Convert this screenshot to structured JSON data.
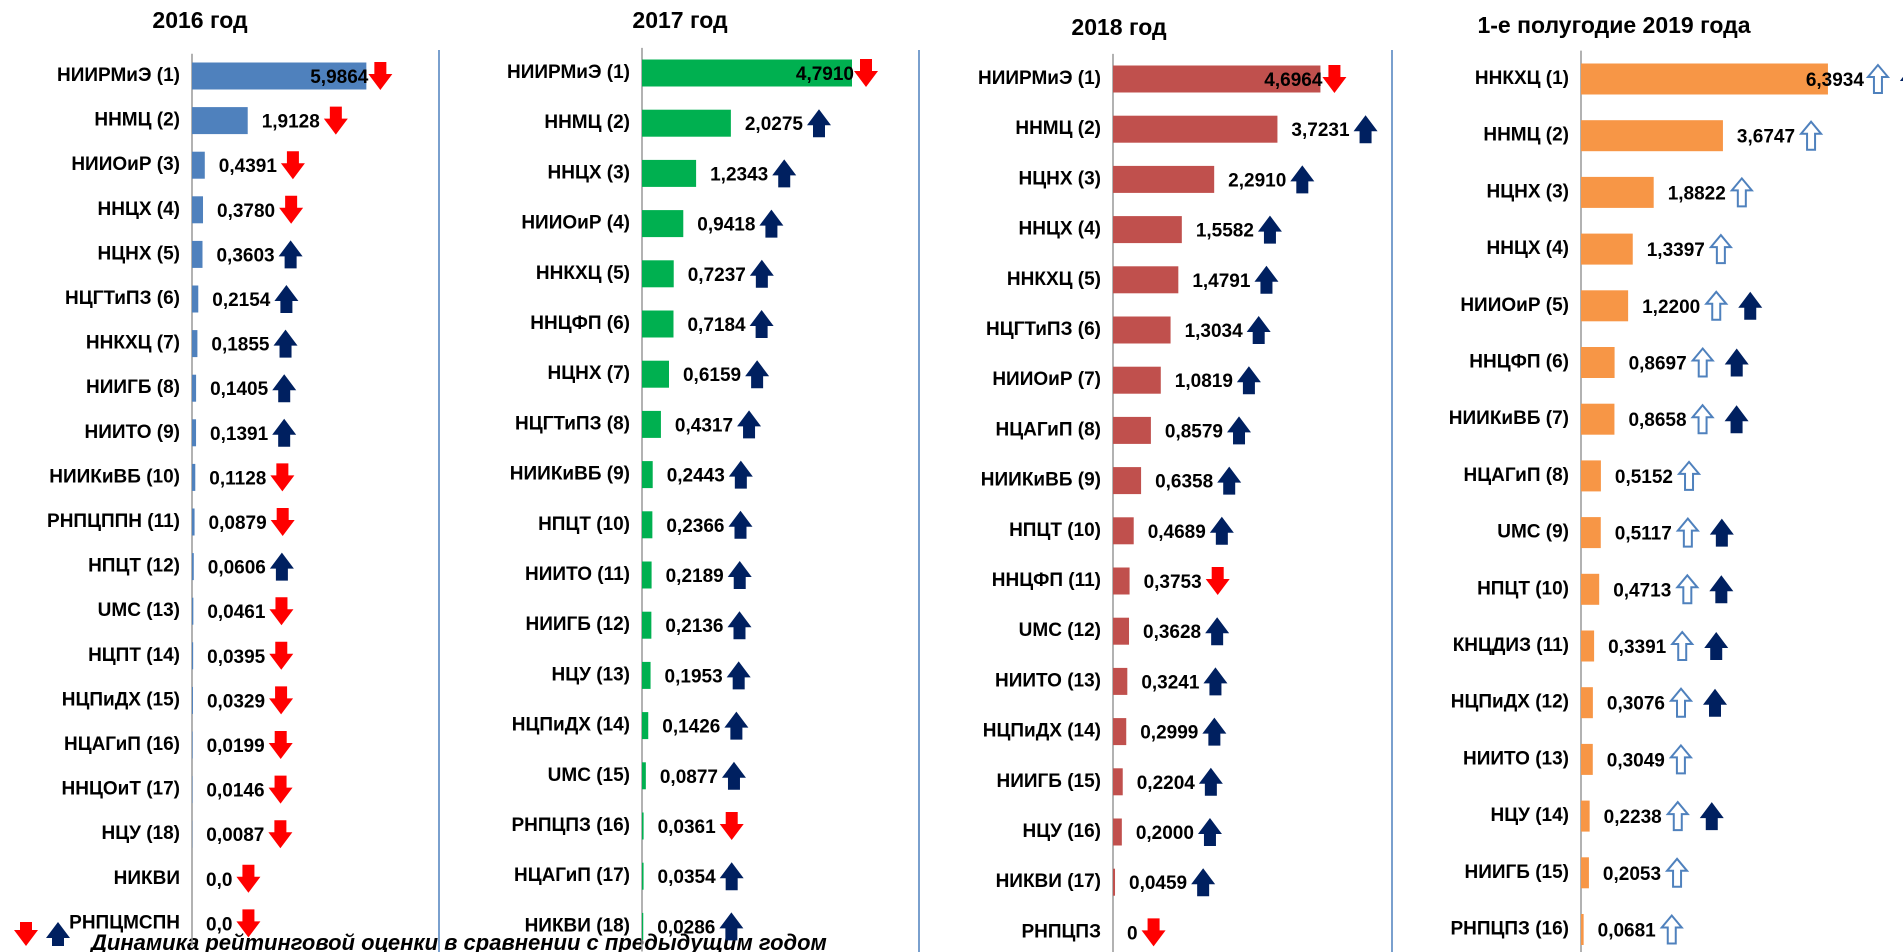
{
  "chart_data": [
    {
      "type": "bar",
      "title": "2016 год",
      "color": "#4f81bd",
      "xlim": [
        0,
        8
      ],
      "categories": [
        "НИИРМиЭ (1)",
        "ННМЦ (2)",
        "НИИОиР (3)",
        "ННЦХ (4)",
        "НЦНХ (5)",
        "НЦГТиПЗ (6)",
        "ННКХЦ (7)",
        "НИИГБ (8)",
        "НИИТО (9)",
        "НИИКиВБ (10)",
        "РНПЦППН (11)",
        "НПЦТ (12)",
        "UMC (13)",
        "НЦПТ (14)",
        "НЦПиДХ (15)",
        "НЦАГиП (16)",
        "ННЦОиТ (17)",
        "НЦУ (18)",
        "НИКВИ",
        "РНПЦМСПН"
      ],
      "values": [
        5.9864,
        1.9128,
        0.4391,
        0.378,
        0.3603,
        0.2154,
        0.1855,
        0.1405,
        0.1391,
        0.1128,
        0.0879,
        0.0606,
        0.0461,
        0.0395,
        0.0329,
        0.0199,
        0.0146,
        0.0087,
        0,
        0
      ],
      "value_labels": [
        "5,9864",
        "1,9128",
        "0,4391",
        "0,3780",
        "0,3603",
        "0,2154",
        "0,1855",
        "0,1405",
        "0,1391",
        "0,1128",
        "0,0879",
        "0,0606",
        "0,0461",
        "0,0395",
        "0,0329",
        "0,0199",
        "0,0146",
        "0,0087",
        "0,0",
        "0,0"
      ],
      "trend": [
        "down",
        "down",
        "down",
        "down",
        "up",
        "up",
        "up",
        "up",
        "up",
        "down",
        "down",
        "up",
        "down",
        "down",
        "down",
        "down",
        "down",
        "down",
        "down",
        "down"
      ]
    },
    {
      "type": "bar",
      "title": "2017 год",
      "color": "#00b050",
      "xlim": [
        0,
        6
      ],
      "categories": [
        "НИИРМиЭ (1)",
        "ННМЦ (2)",
        "ННЦХ (3)",
        "НИИОиР (4)",
        "ННКХЦ (5)",
        "ННЦФП (6)",
        "НЦНХ (7)",
        "НЦГТиПЗ (8)",
        "НИИКиВБ (9)",
        "НПЦТ (10)",
        "НИИТО (11)",
        "НИИГБ (12)",
        "НЦУ (13)",
        "НЦПиДХ (14)",
        "UMC (15)",
        "РНПЦПЗ (16)",
        "НЦАГиП (17)",
        "НИКВИ (18)"
      ],
      "values": [
        4.791,
        2.0275,
        1.2343,
        0.9418,
        0.7237,
        0.7184,
        0.6159,
        0.4317,
        0.2443,
        0.2366,
        0.2189,
        0.2136,
        0.1953,
        0.1426,
        0.0877,
        0.0361,
        0.0354,
        0.0286
      ],
      "value_labels": [
        "4,7910",
        "2,0275",
        "1,2343",
        "0,9418",
        "0,7237",
        "0,7184",
        "0,6159",
        "0,4317",
        "0,2443",
        "0,2366",
        "0,2189",
        "0,2136",
        "0,1953",
        "0,1426",
        "0,0877",
        "0,0361",
        "0,0354",
        "0,0286"
      ],
      "trend": [
        "down",
        "up",
        "up",
        "up",
        "up",
        "up",
        "up",
        "up",
        "up",
        "up",
        "up",
        "up",
        "up",
        "up",
        "up",
        "down",
        "up",
        "up"
      ]
    },
    {
      "type": "bar",
      "title": "2018 год",
      "color": "#c0504d",
      "xlim": [
        0,
        6
      ],
      "categories": [
        "НИИРМиЭ (1)",
        "ННМЦ (2)",
        "НЦНХ (3)",
        "ННЦХ (4)",
        "ННКХЦ (5)",
        "НЦГТиПЗ (6)",
        "НИИОиР (7)",
        "НЦАГиП (8)",
        "НИИКиВБ (9)",
        "НПЦТ (10)",
        "ННЦФП (11)",
        "UMC (12)",
        "НИИТО (13)",
        "НЦПиДХ (14)",
        "НИИГБ (15)",
        "НЦУ (16)",
        "НИКВИ (17)",
        "РНПЦПЗ"
      ],
      "values": [
        4.6964,
        3.7231,
        2.291,
        1.5582,
        1.4791,
        1.3034,
        1.0819,
        0.8579,
        0.6358,
        0.4689,
        0.3753,
        0.3628,
        0.3241,
        0.2999,
        0.2204,
        0.2,
        0.0459,
        0
      ],
      "value_labels": [
        "4,6964",
        "3,7231",
        "2,2910",
        "1,5582",
        "1,4791",
        "1,3034",
        "1,0819",
        "0,8579",
        "0,6358",
        "0,4689",
        "0,3753",
        "0,3628",
        "0,3241",
        "0,2999",
        "0,2204",
        "0,2000",
        "0,0459",
        "0"
      ],
      "trend": [
        "down",
        "up",
        "up",
        "up",
        "up",
        "up",
        "up",
        "up",
        "up",
        "up",
        "down",
        "up",
        "up",
        "up",
        "up",
        "up",
        "up",
        "down"
      ]
    },
    {
      "type": "bar",
      "title": "1-е полугодие 2019 года",
      "color": "#f79646",
      "xlim": [
        0,
        8
      ],
      "categories": [
        "ННКХЦ (1)",
        "ННМЦ (2)",
        "НЦНХ (3)",
        "ННЦХ (4)",
        "НИИОиР (5)",
        "ННЦФП (6)",
        "НИИКиВБ (7)",
        "НЦАГиП (8)",
        "UMC (9)",
        "НПЦТ (10)",
        "КНЦДИЗ (11)",
        "НЦПиДХ (12)",
        "НИИТО (13)",
        "НЦУ (14)",
        "НИИГБ (15)",
        "РНПЦПЗ (16)"
      ],
      "values": [
        6.3934,
        3.6747,
        1.8822,
        1.3397,
        1.22,
        0.8697,
        0.8658,
        0.5152,
        0.5117,
        0.4713,
        0.3391,
        0.3076,
        0.3049,
        0.2238,
        0.2053,
        0.0681
      ],
      "value_labels": [
        "6,3934",
        "3,6747",
        "1,8822",
        "1,3397",
        "1,2200",
        "0,8697",
        "0,8658",
        "0,5152",
        "0,5117",
        "0,4713",
        "0,3391",
        "0,3076",
        "0,3049",
        "0,2238",
        "0,2053",
        "0,0681"
      ],
      "trend": [
        "outline up",
        "outline",
        "outline",
        "outline",
        "outline up",
        "outline up",
        "outline up",
        "outline",
        "outline up",
        "outline up",
        "outline up",
        "outline up",
        "outline",
        "outline up",
        "outline",
        "outline"
      ]
    }
  ],
  "legend_note": "Динамика рейтинговой оценки в сравнении с предыдущим годом"
}
